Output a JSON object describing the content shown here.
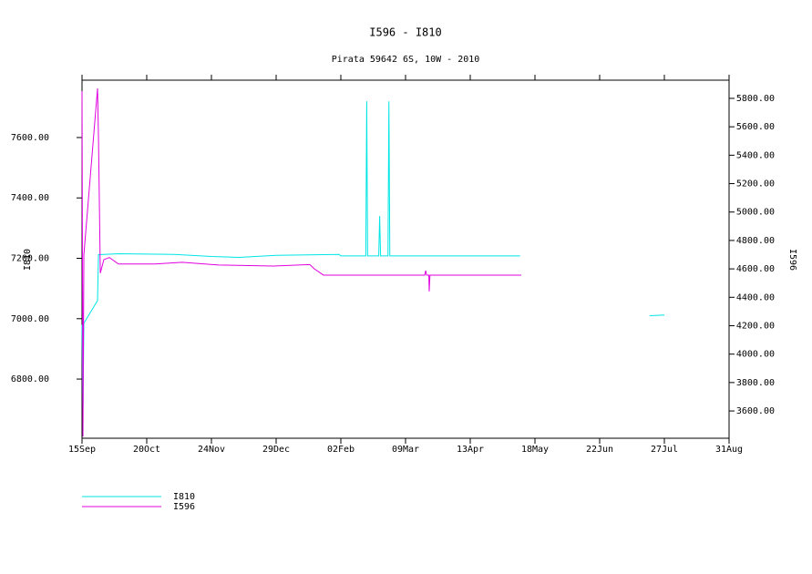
{
  "chart_data": {
    "type": "line",
    "title": "I596 - I810",
    "subtitle": "Pirata 59642 6S, 10W - 2010",
    "y_label": "I810",
    "y2_label": "I596",
    "xlim": [
      0,
      350
    ],
    "xticks": [
      {
        "value": 0,
        "label": "15Sep"
      },
      {
        "value": 35,
        "label": "20Oct"
      },
      {
        "value": 70,
        "label": "24Nov"
      },
      {
        "value": 105,
        "label": "29Dec"
      },
      {
        "value": 140,
        "label": "02Feb"
      },
      {
        "value": 175,
        "label": "09Mar"
      },
      {
        "value": 210,
        "label": "13Apr"
      },
      {
        "value": 245,
        "label": "18May"
      },
      {
        "value": 280,
        "label": "22Jun"
      },
      {
        "value": 315,
        "label": "27Jul"
      },
      {
        "value": 350,
        "label": "31Aug"
      }
    ],
    "ylim": [
      6604,
      7790
    ],
    "yticks": [
      {
        "value": 6800,
        "label": "6800.00"
      },
      {
        "value": 7000,
        "label": "7000.00"
      },
      {
        "value": 7200,
        "label": "7200.00"
      },
      {
        "value": 7400,
        "label": "7400.00"
      },
      {
        "value": 7600,
        "label": "7600.00"
      }
    ],
    "y2lim": [
      3408,
      5928
    ],
    "y2ticks": [
      {
        "value": 3600,
        "label": "3600.00"
      },
      {
        "value": 3800,
        "label": "3800.00"
      },
      {
        "value": 4000,
        "label": "4000.00"
      },
      {
        "value": 4200,
        "label": "4200.00"
      },
      {
        "value": 4400,
        "label": "4400.00"
      },
      {
        "value": 4600,
        "label": "4600.00"
      },
      {
        "value": 4800,
        "label": "4800.00"
      },
      {
        "value": 5000,
        "label": "5000.00"
      },
      {
        "value": 5200,
        "label": "5200.00"
      },
      {
        "value": 5400,
        "label": "5400.00"
      },
      {
        "value": 5600,
        "label": "5600.00"
      },
      {
        "value": 5800,
        "label": "5800.00"
      }
    ],
    "series": [
      {
        "name": "I810",
        "color": "#00e5e5",
        "axis": "y",
        "x": [
          0,
          0.5,
          1,
          8.4,
          8.9,
          20,
          50,
          70,
          85,
          105,
          139,
          140,
          153.5,
          154,
          154.5,
          160.5,
          161,
          161.5,
          165.5,
          166,
          166.5,
          237,
          250,
          307,
          315
        ],
        "values": [
          6980,
          6700,
          6985,
          7060,
          7212,
          7215,
          7213,
          7206,
          7203,
          7210,
          7213,
          7208,
          7208,
          7720,
          7208,
          7208,
          7340,
          7208,
          7208,
          7720,
          7208,
          7208,
          null,
          7010,
          7012
        ]
      },
      {
        "name": "I596",
        "color": "#e000e0",
        "axis": "y2",
        "x": [
          0,
          0.5,
          1,
          8.4,
          8.9,
          9.9,
          11.8,
          14.8,
          19.7,
          39.4,
          54.2,
          73.9,
          103.5,
          123.2,
          125.7,
          130.6,
          139,
          185.4,
          185.9,
          186.4,
          187.6,
          187.8,
          188.2,
          237.6
        ],
        "values": [
          5850,
          3420,
          4700,
          5870,
          5530,
          4570,
          4665,
          4680,
          4634,
          4634,
          4646,
          4627,
          4620,
          4630,
          4600,
          4556,
          4556,
          4556,
          4588,
          4556,
          4556,
          4441,
          4556,
          4556
        ]
      }
    ]
  }
}
